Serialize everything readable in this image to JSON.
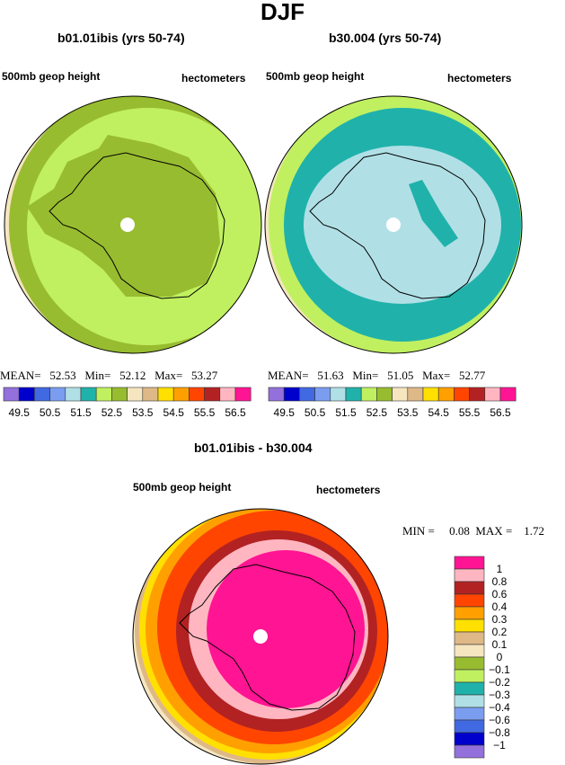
{
  "title": "DJF",
  "colors": [
    "#9370db",
    "#0000cd",
    "#4169e1",
    "#7b9df0",
    "#b0e0e6",
    "#20b2aa",
    "#c0f060",
    "#98bc30",
    "#f5e6c0",
    "#deb887",
    "#ffe000",
    "#ffa000",
    "#ff4500",
    "#b22222",
    "#ffb6c1",
    "#ff1493"
  ],
  "chart_data": [
    {
      "type": "heatmap",
      "title": "b01.01ibis (yrs 50-74)",
      "left_label": "500mb geop height",
      "right_label": "hectometers",
      "stats": {
        "mean_label": "MEAN=",
        "mean": "52.53",
        "min_label": "Min=",
        "min": "52.12",
        "max_label": "Max=",
        "max": "53.27"
      },
      "colorbar_labels": [
        "49.5",
        "50.5",
        "51.5",
        "52.5",
        "53.5",
        "54.5",
        "55.5",
        "56.5"
      ]
    },
    {
      "type": "heatmap",
      "title": "b30.004 (yrs 50-74)",
      "left_label": "500mb geop height",
      "right_label": "hectometers",
      "stats": {
        "mean_label": "MEAN=",
        "mean": "51.63",
        "min_label": "Min=",
        "min": "51.05",
        "max_label": "Max=",
        "max": "52.77"
      },
      "colorbar_labels": [
        "49.5",
        "50.5",
        "51.5",
        "52.5",
        "53.5",
        "54.5",
        "55.5",
        "56.5"
      ]
    },
    {
      "type": "heatmap",
      "title": "b01.01ibis - b30.004",
      "left_label": "500mb geop height",
      "right_label": "hectometers",
      "stats": {
        "min_label": "MIN =",
        "min": "0.08",
        "max_label": "MAX =",
        "max": "1.72"
      },
      "colorbar_labels": [
        "1",
        "0.8",
        "0.6",
        "0.4",
        "0.3",
        "0.2",
        "0.1",
        "0",
        "−0.1",
        "−0.2",
        "−0.3",
        "−0.4",
        "−0.6",
        "−0.8",
        "−1"
      ]
    }
  ]
}
